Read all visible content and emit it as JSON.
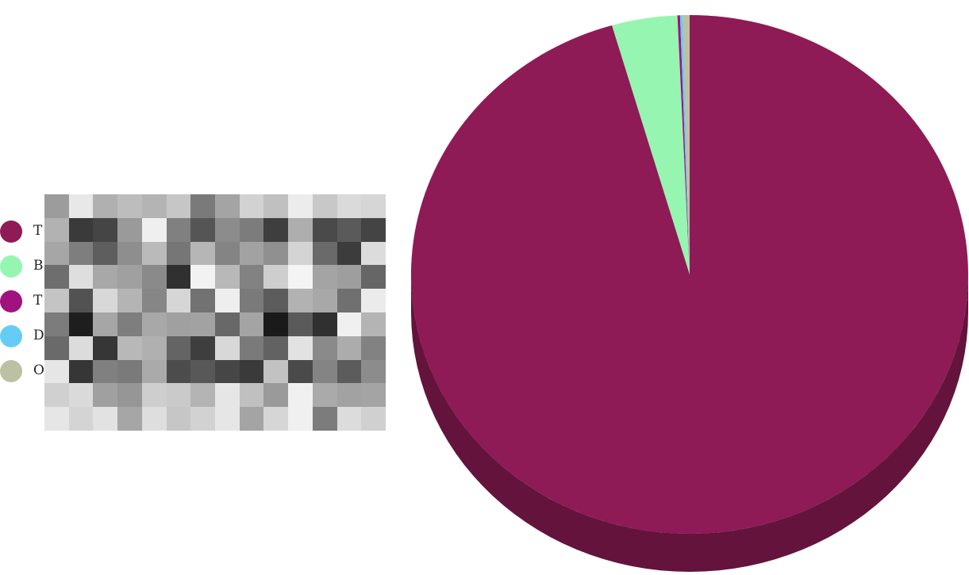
{
  "chart_data": {
    "type": "pie",
    "title": "",
    "legend": {
      "placement": "left",
      "entries": [
        {
          "label": "T",
          "color": "#8e1b56"
        },
        {
          "label": "B",
          "color": "#96f5b0"
        },
        {
          "label": "T",
          "color": "#a0137e"
        },
        {
          "label": "D",
          "color": "#65ccf5"
        },
        {
          "label": "O",
          "color": "#bcc1a3"
        }
      ]
    },
    "slices": [
      {
        "value": 95.5,
        "color": "#8e1b56",
        "side_color": "#64143c"
      },
      {
        "value": 3.8,
        "color": "#96f5b0",
        "side_color": "#6ab37e"
      },
      {
        "value": 0.15,
        "color": "#a0137e",
        "side_color": "#700d58"
      },
      {
        "value": 0.15,
        "color": "#65ccf5",
        "side_color": "#4590ad"
      },
      {
        "value": 0.4,
        "color": "#bcc1a3",
        "side_color": "#868a73"
      }
    ]
  },
  "redaction": {
    "colors": [
      "#9c9c9c",
      "#e8e8e8",
      "#b0b0b0",
      "#bdbdbd",
      "#b4b4b4",
      "#c6c6c6",
      "#7a7a7a",
      "#a4a4a4",
      "#d2d2d2",
      "#c0c0c0",
      "#ececec",
      "#c8c8c8",
      "#dadada",
      "#d6d6d6",
      "#b2b2b2",
      "#3a3a3a",
      "#454545",
      "#9a9a9a",
      "#efefef",
      "#808080",
      "#555555",
      "#8c8c8c",
      "#7c7c7c",
      "#3e3e3e",
      "#aeaeae",
      "#4a4a4a",
      "#5a5a5a",
      "#444444",
      "#a6a6a6",
      "#7e7e7e",
      "#5e5e5e",
      "#8e8e8e",
      "#bababa",
      "#767676",
      "#b6b6b6",
      "#848484",
      "#a2a2a2",
      "#909090",
      "#d4d4d4",
      "#6a6a6a",
      "#3c3c3c",
      "#dcdcdc",
      "#6e6e6e",
      "#dedede",
      "#a8a8a8",
      "#a0a0a0",
      "#8a8a8a",
      "#303030",
      "#f2f2f2",
      "#b8b8b8",
      "#828282",
      "#cecece",
      "#f4f4f4",
      "#a4a4a4",
      "#9e9e9e",
      "#666666",
      "#c4c4c4",
      "#525252",
      "#d8d8d8",
      "#b4b4b4",
      "#868686",
      "#d6d6d6",
      "#727272",
      "#eeeeee",
      "#7a7a7a",
      "#5c5c5c",
      "#b2b2b2",
      "#a8a8a8",
      "#707070",
      "#ebebeb",
      "#7c7c7c",
      "#1e1e1e",
      "#a6a6a6",
      "#7e7e7e",
      "#a8a8a8",
      "#a0a0a0",
      "#a2a2a2",
      "#686868",
      "#a4a4a4",
      "#1a1a1a",
      "#5a5a5a",
      "#303030",
      "#f0f0f0",
      "#b4b4b4",
      "#6a6a6a",
      "#dcdcdc",
      "#363636",
      "#b8b8b8",
      "#b0b0b0",
      "#646464",
      "#3e3e3e",
      "#d8d8d8",
      "#7a7a7a",
      "#626262",
      "#e2e2e2",
      "#8a8a8a",
      "#acacac",
      "#828282",
      "#e6e6e6",
      "#363636",
      "#808080",
      "#7a7a7a",
      "#aaaaaa",
      "#4c4c4c",
      "#585858",
      "#464646",
      "#3a3a3a",
      "#c2c2c2",
      "#4a4a4a",
      "#848484",
      "#5c5c5c",
      "#8c8c8c",
      "#d0d0d0",
      "#dadada",
      "#a0a0a0",
      "#969696",
      "#cecece",
      "#cacaca",
      "#b4b4b4",
      "#e6e6e6",
      "#c0c0c0",
      "#9a9a9a",
      "#f0f0f0",
      "#aaaaaa",
      "#a2a2a2",
      "#a4a4a4",
      "#e6e6e6",
      "#d4d4d4",
      "#e2e2e2",
      "#a6a6a6",
      "#dedede",
      "#c6c6c6",
      "#d2d2d2",
      "#e6e6e6",
      "#a4a4a4",
      "#d6d6d6",
      "#f0f0f0",
      "#7c7c7c",
      "#dcdcdc",
      "#d0d0d0"
    ]
  }
}
